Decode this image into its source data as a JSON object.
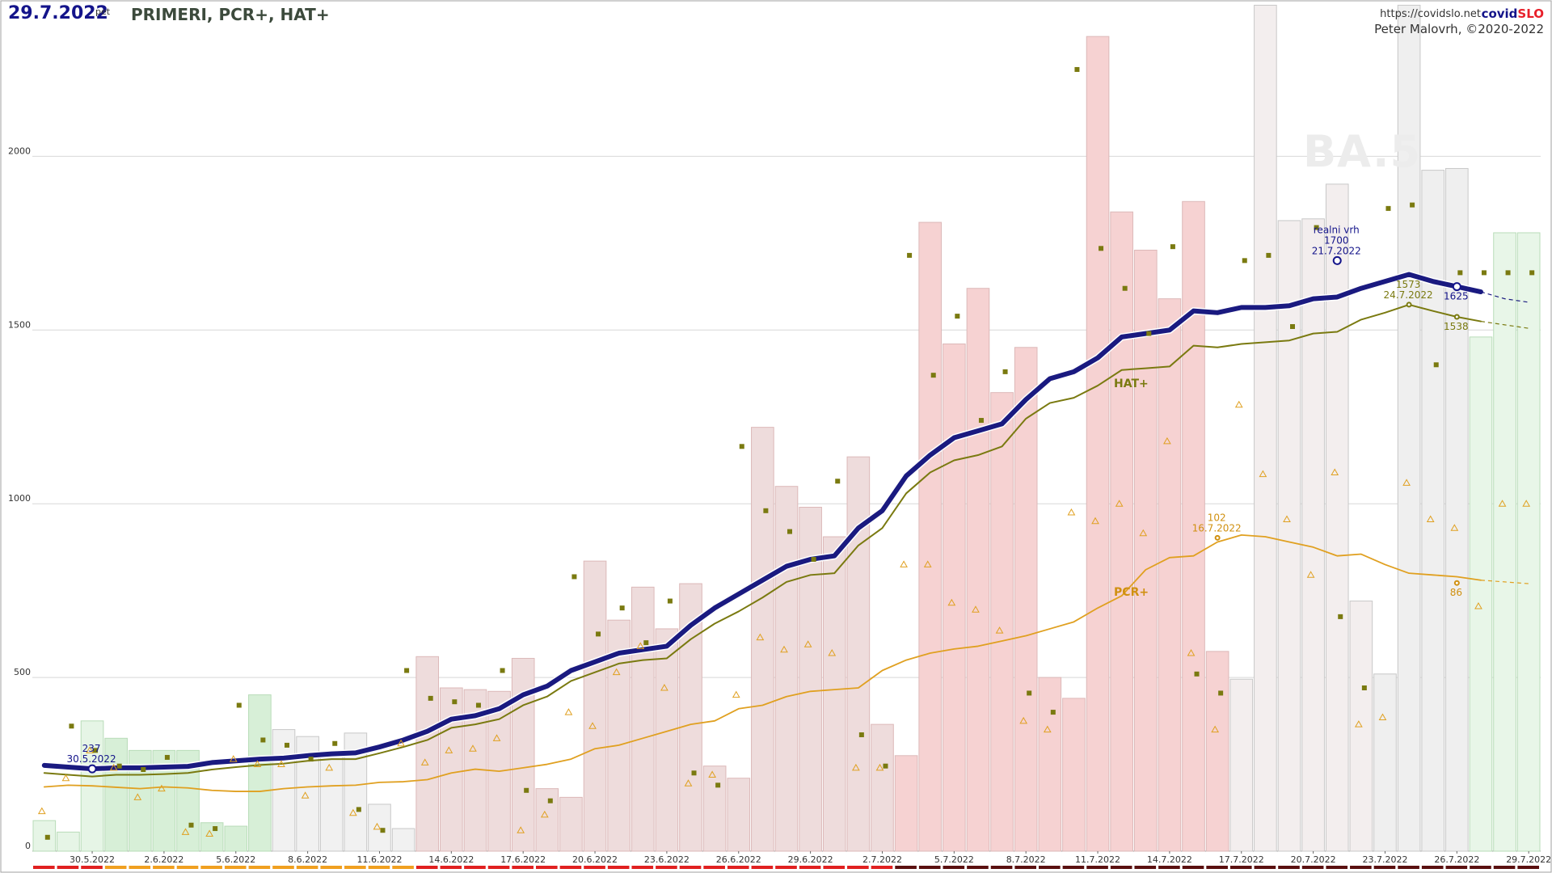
{
  "header": {
    "date": "29.7.2022",
    "weekday": "pet",
    "title": "PRIMERI, PCR+, HAT+",
    "site_url": "https://covidslo.net",
    "brand_part1": "covid",
    "brand_part2": "SLO",
    "copyright": "Peter Malovrh, ©2020-2022"
  },
  "watermark": "BA.5",
  "chart_data": {
    "type": "bar",
    "y_axis": {
      "ylim": [
        0,
        2450
      ],
      "ticks": [
        0,
        500,
        1000,
        1500,
        2000
      ],
      "grid": true
    },
    "x": [
      "28.5.2022",
      "29.5.2022",
      "30.5.2022",
      "31.5.2022",
      "1.6.2022",
      "2.6.2022",
      "3.6.2022",
      "4.6.2022",
      "5.6.2022",
      "6.6.2022",
      "7.6.2022",
      "8.6.2022",
      "9.6.2022",
      "10.6.2022",
      "11.6.2022",
      "12.6.2022",
      "13.6.2022",
      "14.6.2022",
      "15.6.2022",
      "16.6.2022",
      "17.6.2022",
      "18.6.2022",
      "19.6.2022",
      "20.6.2022",
      "21.6.2022",
      "22.6.2022",
      "23.6.2022",
      "24.6.2022",
      "25.6.2022",
      "26.6.2022",
      "27.6.2022",
      "28.6.2022",
      "29.6.2022",
      "30.6.2022",
      "1.7.2022",
      "2.7.2022",
      "3.7.2022",
      "4.7.2022",
      "5.7.2022",
      "6.7.2022",
      "7.7.2022",
      "8.7.2022",
      "9.7.2022",
      "10.7.2022",
      "11.7.2022",
      "12.7.2022",
      "13.7.2022",
      "14.7.2022",
      "15.7.2022",
      "16.7.2022",
      "17.7.2022",
      "18.7.2022",
      "19.7.2022",
      "20.7.2022",
      "21.7.2022",
      "22.7.2022",
      "23.7.2022",
      "24.7.2022",
      "25.7.2022",
      "26.7.2022",
      "27.7.2022",
      "28.7.2022",
      "29.7.2022"
    ],
    "x_tick_labels": [
      "30.5.2022",
      "2.6.2022",
      "5.6.2022",
      "8.6.2022",
      "11.6.2022",
      "14.6.2022",
      "17.6.2022",
      "20.6.2022",
      "23.6.2022",
      "26.6.2022",
      "29.6.2022",
      "2.7.2022",
      "5.7.2022",
      "8.7.2022",
      "11.7.2022",
      "14.7.2022",
      "17.7.2022",
      "20.7.2022",
      "23.7.2022",
      "26.7.2022",
      "29.7.2022"
    ],
    "series": [
      {
        "name": "primeri",
        "mark": "bar",
        "values": [
          88,
          55,
          375,
          325,
          290,
          290,
          290,
          82,
          72,
          450,
          350,
          330,
          285,
          340,
          135,
          65,
          560,
          470,
          465,
          460,
          555,
          180,
          155,
          835,
          665,
          760,
          640,
          770,
          245,
          210,
          1220,
          1050,
          990,
          905,
          1135,
          365,
          275,
          1810,
          1460,
          1620,
          1320,
          1450,
          500,
          440,
          2345,
          1840,
          1730,
          1590,
          1870,
          575,
          495,
          2435,
          1815,
          1820,
          1920,
          720,
          510,
          2435,
          1960,
          1965,
          1480,
          1780,
          1780
        ]
      },
      {
        "name": "HAT+",
        "mark": "square",
        "values": [
          40,
          360,
          290,
          245,
          235,
          270,
          75,
          65,
          420,
          320,
          305,
          265,
          310,
          120,
          60,
          520,
          440,
          430,
          420,
          520,
          175,
          145,
          790,
          625,
          700,
          600,
          720,
          225,
          190,
          1165,
          980,
          920,
          840,
          1065,
          335,
          245,
          1715,
          1370,
          1540,
          1240,
          1380,
          455,
          400,
          2250,
          1735,
          1620,
          1490,
          1740,
          510,
          455,
          1700,
          1715,
          1510,
          1795,
          675,
          470,
          1850,
          1860,
          1400,
          1665,
          1665,
          1665,
          1665
        ]
      },
      {
        "name": "PCR+",
        "mark": "triangle",
        "values": [
          115,
          210,
          290,
          240,
          155,
          180,
          55,
          50,
          265,
          250,
          250,
          160,
          240,
          110,
          70,
          310,
          255,
          290,
          295,
          325,
          60,
          105,
          400,
          360,
          515,
          590,
          470,
          195,
          220,
          450,
          615,
          580,
          595,
          570,
          240,
          240,
          825,
          825,
          715,
          695,
          635,
          375,
          350,
          975,
          950,
          1000,
          915,
          1180,
          570,
          350,
          1285,
          1085,
          955,
          795,
          1090,
          365,
          385,
          1060,
          955,
          930,
          705,
          1000,
          1000
        ]
      },
      {
        "name": "primeri_avg",
        "mark": "line",
        "values": [
          247,
          242,
          237,
          240,
          240,
          242,
          244,
          255,
          260,
          265,
          268,
          275,
          280,
          283,
          300,
          320,
          345,
          380,
          390,
          410,
          450,
          475,
          520,
          545,
          570,
          580,
          590,
          650,
          700,
          740,
          780,
          820,
          840,
          850,
          930,
          980,
          1080,
          1140,
          1190,
          1210,
          1230,
          1300,
          1360,
          1380,
          1420,
          1480,
          1490,
          1500,
          1555,
          1550,
          1565,
          1565,
          1570,
          1590,
          1595,
          1620,
          1640,
          1660,
          1640,
          1625,
          1610,
          1590,
          1580
        ]
      },
      {
        "name": "HAT+_avg",
        "mark": "line",
        "values": [
          225,
          220,
          215,
          220,
          220,
          222,
          225,
          235,
          242,
          248,
          252,
          260,
          265,
          265,
          282,
          300,
          320,
          355,
          365,
          380,
          420,
          445,
          490,
          515,
          540,
          550,
          555,
          610,
          655,
          690,
          730,
          775,
          795,
          800,
          880,
          930,
          1030,
          1090,
          1125,
          1140,
          1165,
          1245,
          1290,
          1305,
          1340,
          1385,
          1390,
          1395,
          1455,
          1450,
          1460,
          1465,
          1470,
          1490,
          1495,
          1530,
          1550,
          1573,
          1555,
          1538,
          1525,
          1515,
          1505
        ]
      },
      {
        "name": "PCR+_avg",
        "mark": "line",
        "values": [
          185,
          190,
          188,
          184,
          180,
          185,
          182,
          175,
          172,
          172,
          180,
          185,
          188,
          190,
          198,
          200,
          206,
          225,
          236,
          230,
          240,
          250,
          265,
          295,
          305,
          325,
          345,
          365,
          375,
          410,
          420,
          445,
          460,
          465,
          470,
          520,
          550,
          570,
          582,
          590,
          605,
          620,
          640,
          660,
          700,
          735,
          810,
          845,
          850,
          890,
          910,
          905,
          890,
          875,
          850,
          855,
          825,
          800,
          795,
          790,
          780,
          775,
          770
        ]
      }
    ],
    "annotations": [
      {
        "series": "primeri_avg",
        "x": "30.5.2022",
        "value": 237,
        "lines": [
          "237",
          "30.5.2022"
        ]
      },
      {
        "series": "primeri_avg",
        "x": "21.7.2022",
        "value": 1700,
        "lines": [
          "realni vrh",
          "1700",
          "21.7.2022"
        ]
      },
      {
        "series": "primeri_avg",
        "x": "26.7.2022",
        "value": 1625,
        "lines": [
          "1625"
        ]
      },
      {
        "series": "HAT+_avg",
        "x": "24.7.2022",
        "value": 1573,
        "lines": [
          "1573",
          "24.7.2022"
        ]
      },
      {
        "series": "HAT+_avg",
        "x": "26.7.2022",
        "value": 1538,
        "lines": [
          "1538"
        ]
      },
      {
        "series": "PCR+_avg",
        "x": "16.7.2022",
        "value": 902,
        "lines": [
          "102",
          "16.7.2022"
        ]
      },
      {
        "series": "PCR+_avg",
        "x": "26.7.2022",
        "value": 772,
        "lines": [
          "86"
        ]
      }
    ],
    "series_labels": [
      {
        "series": "HAT+_avg",
        "text": "HAT+",
        "x": "11.7.2022",
        "value": 1335
      },
      {
        "series": "PCR+_avg",
        "text": "PCR+",
        "x": "11.7.2022",
        "value": 735
      }
    ],
    "colors": {
      "primeri_avg": "#1a1a80",
      "HAT+": "#7a7a10",
      "PCR+": "#e0a020",
      "grid": "#d8d8d8"
    }
  }
}
